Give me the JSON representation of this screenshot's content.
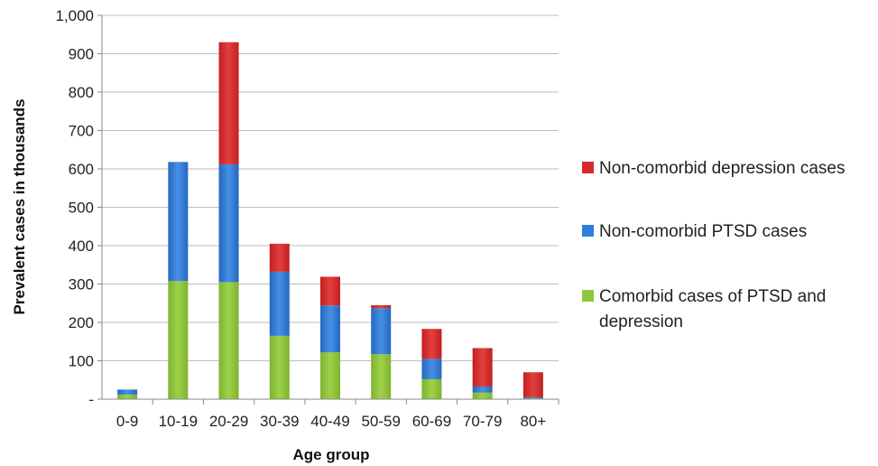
{
  "chart_data": {
    "type": "bar",
    "stacked": true,
    "title": "",
    "xlabel": "Age group",
    "ylabel": "Prevalent cases in thousands",
    "ylim": [
      0,
      1000
    ],
    "yticks": [
      0,
      100,
      200,
      300,
      400,
      500,
      600,
      700,
      800,
      900,
      1000
    ],
    "ytick_labels": [
      "-",
      "100",
      "200",
      "300",
      "400",
      "500",
      "600",
      "700",
      "800",
      "900",
      "1,000"
    ],
    "grid": true,
    "legend_position": "right",
    "categories": [
      "0-9",
      "10-19",
      "20-29",
      "30-39",
      "40-49",
      "50-59",
      "60-69",
      "70-79",
      "80+"
    ],
    "series": [
      {
        "name": "Comorbid cases of PTSD and depression",
        "color": "#8dc63f",
        "values": [
          12,
          308,
          305,
          165,
          122,
          117,
          52,
          17,
          2
        ]
      },
      {
        "name": "Non-comorbid PTSD cases",
        "color": "#2f7ed8",
        "values": [
          13,
          310,
          307,
          167,
          122,
          120,
          53,
          16,
          3
        ]
      },
      {
        "name": "Non-comorbid depression cases",
        "color": "#d62b2b",
        "values": [
          0,
          0,
          318,
          73,
          75,
          8,
          78,
          100,
          65
        ]
      }
    ]
  }
}
